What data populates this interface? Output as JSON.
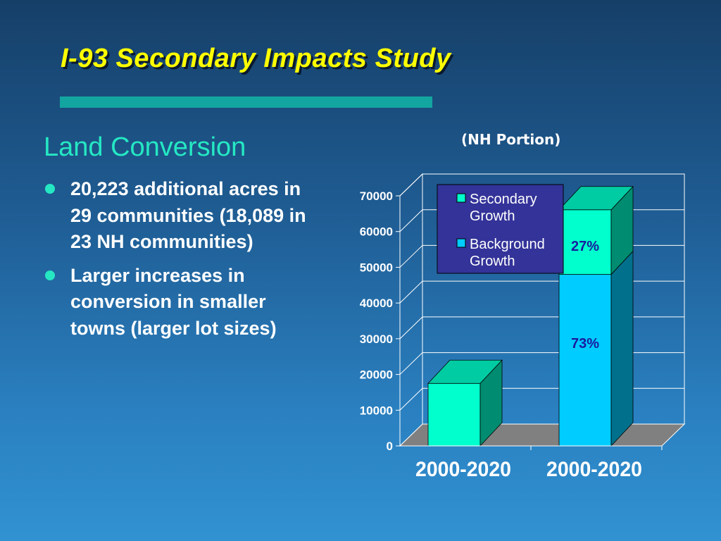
{
  "slide": {
    "title": "I-93 Secondary Impacts Study",
    "section_heading": "Land Conversion",
    "bullets": [
      "20,223 additional acres in 29 communities (18,089 in 23 NH communities)",
      "Larger increases in conversion in smaller towns (larger lot sizes)"
    ]
  },
  "colors": {
    "title": "#ffff00",
    "heading": "#25e8c3",
    "secondary_growth": "#00ffcc",
    "background_growth": "#00ccff",
    "legend_box": "#333399"
  },
  "chart_data": {
    "type": "bar",
    "stacked": true,
    "subtitle": "(NH Portion)",
    "categories": [
      "2000-2020",
      "2000-2020"
    ],
    "series": [
      {
        "name": "Background Growth",
        "values": [
          0,
          48000
        ]
      },
      {
        "name": "Secondary Growth",
        "values": [
          17500,
          18100
        ]
      }
    ],
    "data_labels": [
      {
        "category_index": 1,
        "series": "Background Growth",
        "text": "73%"
      },
      {
        "category_index": 1,
        "series": "Secondary Growth",
        "text": "27%"
      }
    ],
    "yticks": [
      0,
      10000,
      20000,
      30000,
      40000,
      50000,
      60000,
      70000
    ],
    "ylim": [
      0,
      70000
    ],
    "legend": {
      "placement": "top-left inside plot",
      "entries": [
        "Secondary Growth",
        "Background Growth"
      ]
    },
    "grid": true
  }
}
